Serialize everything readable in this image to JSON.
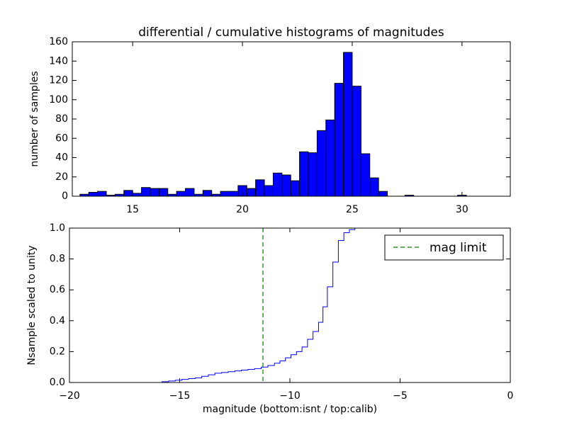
{
  "chart_data": [
    {
      "type": "histogram",
      "title": "differential / cumulative histograms of magnitudes",
      "ylabel": "number of samples",
      "bins": [
        12.6,
        13.0,
        13.4,
        13.8,
        14.2,
        14.6,
        15.0,
        15.4,
        15.8,
        16.2,
        16.6,
        17.0,
        17.4,
        17.8,
        18.2,
        18.6,
        19.0,
        19.4,
        19.8,
        20.2,
        20.6,
        21.0,
        21.4,
        21.8,
        22.2,
        22.6,
        23.0,
        23.4,
        23.8,
        24.2,
        24.6,
        25.0,
        25.4,
        25.8,
        26.2,
        26.6,
        27.0,
        27.4,
        27.8,
        28.2,
        28.6,
        29.0,
        29.4,
        29.8,
        30.2,
        30.6,
        31.0,
        31.4,
        31.8
      ],
      "values": [
        2,
        4,
        5,
        1,
        2,
        6,
        3,
        9,
        8,
        8,
        2,
        5,
        8,
        2,
        6,
        2,
        5,
        5,
        11,
        8,
        17,
        11,
        24,
        22,
        16,
        46,
        45,
        68,
        79,
        117,
        149,
        114,
        44,
        19,
        5,
        0,
        0,
        1,
        0,
        0,
        0,
        0,
        0,
        1,
        0,
        0,
        0,
        0
      ],
      "color": "#0000ff",
      "xlim": [
        12.25,
        32.2
      ],
      "xticks": [
        15,
        20,
        25,
        30
      ],
      "ylim": [
        0,
        160
      ],
      "yticks": [
        0,
        20,
        40,
        60,
        80,
        100,
        120,
        140,
        160
      ]
    },
    {
      "type": "line",
      "xlabel": "magnitude (bottom:isnt / top:calib)",
      "ylabel": "Nsample scaled to unity",
      "x": [
        -20,
        -15.8,
        -15.5,
        -15.2,
        -14.9,
        -14.6,
        -14.3,
        -14.0,
        -13.7,
        -13.4,
        -13.1,
        -12.8,
        -12.5,
        -12.2,
        -11.9,
        -11.6,
        -11.3,
        -11.0,
        -10.7,
        -10.45,
        -10.2,
        -9.95,
        -9.7,
        -9.45,
        -9.2,
        -8.95,
        -8.7,
        -8.5,
        -8.3,
        -8.05,
        -7.8,
        -7.55,
        -7.3,
        -7.05
      ],
      "series": [
        {
          "color": "#0000ff",
          "values": [
            0,
            0.005,
            0.01,
            0.015,
            0.02,
            0.025,
            0.03,
            0.04,
            0.05,
            0.06,
            0.065,
            0.07,
            0.075,
            0.08,
            0.085,
            0.09,
            0.1,
            0.11,
            0.125,
            0.14,
            0.16,
            0.18,
            0.2,
            0.23,
            0.28,
            0.33,
            0.39,
            0.49,
            0.62,
            0.78,
            0.92,
            0.97,
            0.99,
            1.0
          ]
        }
      ],
      "vline": {
        "name": "mag limit",
        "x": -11.22,
        "color": "#008000"
      },
      "legend": "upper right",
      "xlim": [
        -20,
        0
      ],
      "xticks": [
        {
          "value": -20,
          "label": "−20"
        },
        {
          "value": -15,
          "label": "−15"
        },
        {
          "value": -10,
          "label": "−10"
        },
        {
          "value": -5,
          "label": "−5"
        },
        0
      ],
      "ylim": [
        0,
        1
      ],
      "yticks": [
        {
          "value": 0,
          "label": "0.0"
        },
        0.2,
        0.4,
        0.6,
        0.8,
        {
          "value": 1,
          "label": "1.0"
        }
      ]
    }
  ]
}
